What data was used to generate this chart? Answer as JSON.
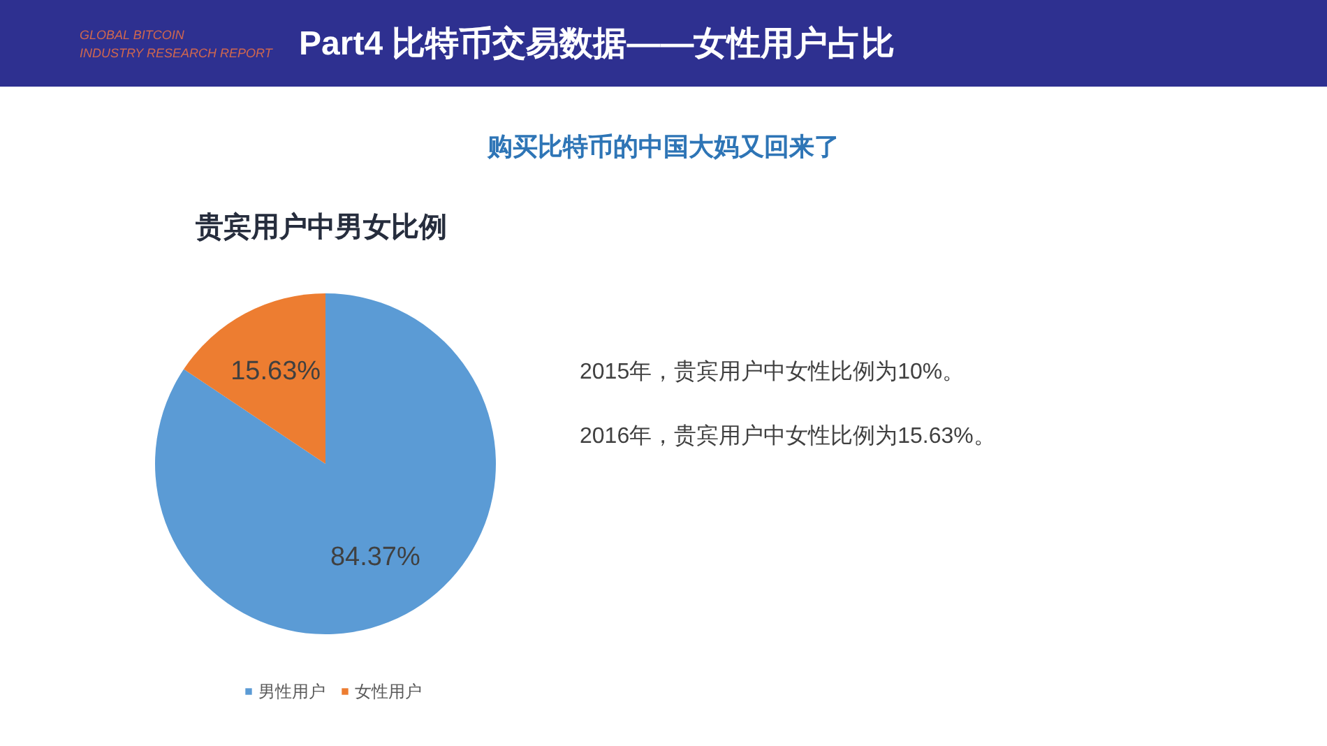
{
  "chart_data": {
    "type": "pie",
    "title": "贵宾用户中男女比例",
    "subtitle": "购买比特币的中国大妈又回来了",
    "categories": [
      "男性用户",
      "女性用户"
    ],
    "values": [
      84.37,
      15.63
    ],
    "colors": [
      "#5b9bd5",
      "#ed7d31"
    ],
    "value_labels": [
      "84.37%",
      "15.63%"
    ],
    "legend": "bottom",
    "annotations": [
      "GLOBAL BITCOIN",
      "INDUSTRY RESEARCH REPORT",
      "Part4 比特币交易数据——女性用户占比",
      "2015年，贵宾用户中女性比例为10%。",
      "2016年，贵宾用户中女性比例为15.63%。"
    ]
  }
}
